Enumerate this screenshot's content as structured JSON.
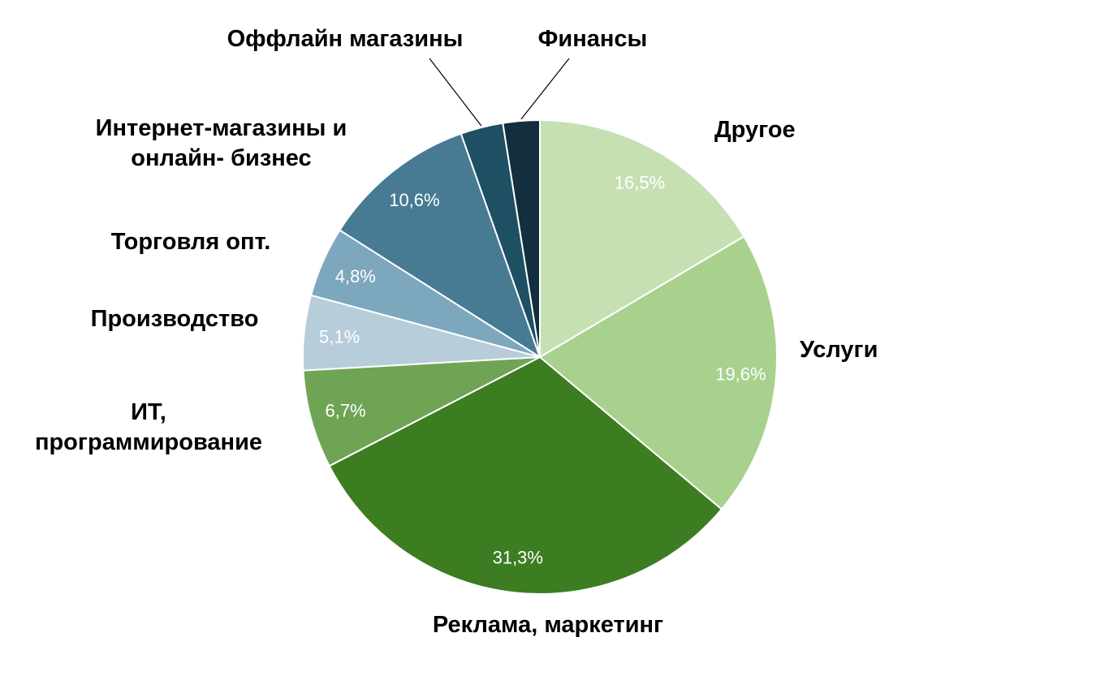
{
  "chart_data": {
    "type": "pie",
    "title": "",
    "legend": "none",
    "labels_position": "outside",
    "start_angle_deg": 0,
    "direction": "clockwise",
    "background_color": "#ffffff",
    "label_text_color": "#000000",
    "pct_text_color": "#ffffff",
    "leader_line_color": "#000000",
    "slices": [
      {
        "label": "Другое",
        "value": 16.5,
        "pct_label": "16,5%",
        "color": "#c6e0b4",
        "has_leader_line": false
      },
      {
        "label": "Услуги",
        "value": 19.6,
        "pct_label": "19,6%",
        "color": "#a9d18e",
        "has_leader_line": false
      },
      {
        "label": "Реклама, маркетинг",
        "value": 31.3,
        "pct_label": "31,3%",
        "color": "#3d7d22",
        "has_leader_line": false
      },
      {
        "label": "ИТ, программирование",
        "value": 6.7,
        "pct_label": "6,7%",
        "color": "#6fa455",
        "has_leader_line": false
      },
      {
        "label": "Производство",
        "value": 5.1,
        "pct_label": "5,1%",
        "color": "#b7cdd9",
        "has_leader_line": false
      },
      {
        "label": "Торговля опт.",
        "value": 4.8,
        "pct_label": "4,8%",
        "color": "#7da7bc",
        "has_leader_line": false
      },
      {
        "label": "Интернет-магазины и онлайн- бизнес",
        "value": 10.6,
        "pct_label": "10,6%",
        "color": "#467b93",
        "has_leader_line": false
      },
      {
        "label": "Оффлайн магазины",
        "value": 2.9,
        "pct_label": "",
        "color": "#1c5062",
        "has_leader_line": true
      },
      {
        "label": "Финансы",
        "value": 2.5,
        "pct_label": "",
        "color": "#132e3e",
        "has_leader_line": true
      }
    ]
  }
}
